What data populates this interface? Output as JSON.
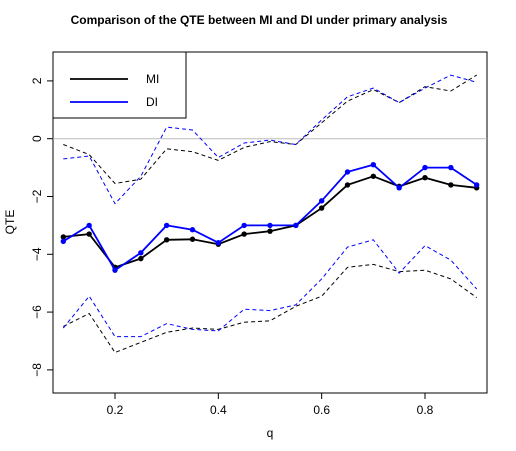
{
  "chart_data": {
    "type": "line",
    "title": "Comparison of the QTE between MI and DI under primary analysis",
    "xlabel": "q",
    "ylabel": "QTE",
    "xlim": [
      0.08,
      0.92
    ],
    "ylim": [
      -8.8,
      3.0
    ],
    "xticks": [
      0.2,
      0.4,
      0.6,
      0.8
    ],
    "xtick_labels": [
      "0.2",
      "0.4",
      "0.6",
      "0.8"
    ],
    "yticks": [
      -8,
      -6,
      -4,
      -2,
      0,
      2
    ],
    "ytick_labels": [
      "−8",
      "−6",
      "−4",
      "−2",
      "0",
      "2"
    ],
    "reference_line": 0,
    "legend_position": "top-left",
    "x": [
      0.1,
      0.15,
      0.2,
      0.25,
      0.3,
      0.35,
      0.4,
      0.45,
      0.5,
      0.55,
      0.6,
      0.65,
      0.7,
      0.75,
      0.8,
      0.85,
      0.9
    ],
    "series": [
      {
        "name": "MI",
        "color": "#000000",
        "values": [
          -3.4,
          -3.3,
          -4.45,
          -4.15,
          -3.5,
          -3.48,
          -3.65,
          -3.3,
          -3.2,
          -3.0,
          -2.4,
          -1.6,
          -1.3,
          -1.65,
          -1.35,
          -1.6,
          -1.7
        ],
        "upper": [
          -0.2,
          -0.55,
          -1.55,
          -1.4,
          -0.35,
          -0.45,
          -0.75,
          -0.3,
          -0.1,
          -0.2,
          0.55,
          1.3,
          1.7,
          1.25,
          1.8,
          1.65,
          2.2
        ],
        "lower": [
          -6.5,
          -6.05,
          -7.4,
          -7.05,
          -6.7,
          -6.55,
          -6.6,
          -6.35,
          -6.3,
          -5.8,
          -5.45,
          -4.45,
          -4.35,
          -4.6,
          -4.55,
          -4.85,
          -5.5
        ]
      },
      {
        "name": "DI",
        "color": "#0000FF",
        "values": [
          -3.55,
          -3.0,
          -4.55,
          -3.95,
          -3.0,
          -3.15,
          -3.6,
          -3.0,
          -3.0,
          -3.0,
          -2.15,
          -1.15,
          -0.9,
          -1.7,
          -1.0,
          -1.0,
          -1.6
        ],
        "upper": [
          -0.7,
          -0.6,
          -2.25,
          -1.3,
          0.4,
          0.3,
          -0.65,
          -0.15,
          -0.05,
          -0.2,
          0.65,
          1.45,
          1.75,
          1.25,
          1.75,
          2.2,
          1.95
        ],
        "lower": [
          -6.55,
          -5.45,
          -6.85,
          -6.85,
          -6.4,
          -6.6,
          -6.65,
          -5.9,
          -5.95,
          -5.75,
          -4.85,
          -3.75,
          -3.5,
          -4.65,
          -3.7,
          -4.2,
          -5.2
        ]
      }
    ]
  }
}
